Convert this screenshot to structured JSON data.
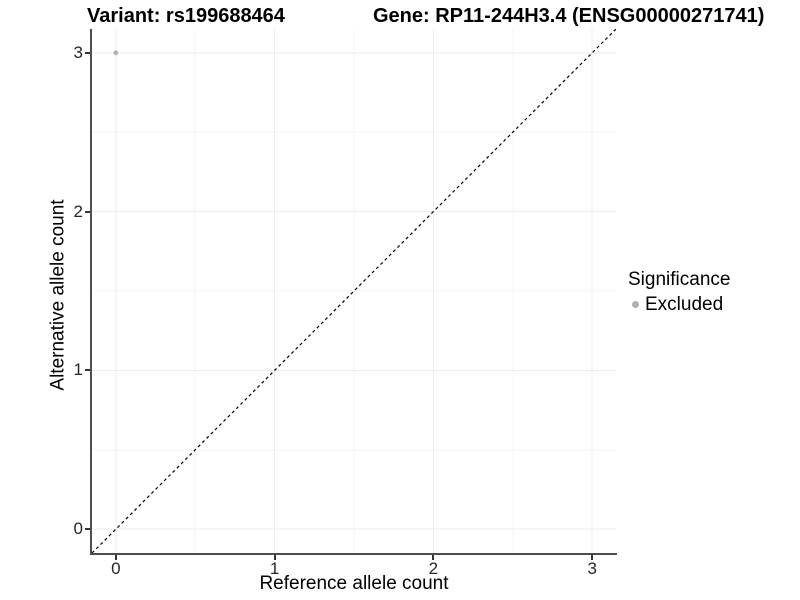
{
  "chart_data": {
    "type": "scatter",
    "title_left": "Variant: rs199688464",
    "title_right": "Gene: RP11-244H3.4 (ENSG00000271741)",
    "xlabel": "Reference allele count",
    "ylabel": "Alternative allele count",
    "xlim": [
      -0.15,
      3.15
    ],
    "ylim": [
      -0.15,
      3.15
    ],
    "x_ticks": [
      0,
      1,
      2,
      3
    ],
    "y_ticks": [
      0,
      1,
      2,
      3
    ],
    "x_minor_gridlines": [
      0.5,
      1.5,
      2.5
    ],
    "y_minor_gridlines": [
      0.5,
      1.5,
      2.5
    ],
    "grid": "major+minor",
    "legend_position": "right",
    "series": [
      {
        "name": "Excluded",
        "marker": "circle",
        "color": "#b0b0b0",
        "points": [
          {
            "x": 0,
            "y": 3
          }
        ]
      }
    ],
    "reference_line": {
      "style": "dashed",
      "color": "#000000",
      "from": [
        -0.15,
        -0.15
      ],
      "to": [
        3.15,
        3.15
      ]
    },
    "legend": {
      "title": "Significance",
      "entries": [
        {
          "label": "Excluded",
          "color": "#b0b0b0",
          "marker": "circle"
        }
      ]
    }
  },
  "colors": {
    "background": "#ffffff",
    "grid_major": "#ececec",
    "grid_minor": "#f4f4f4",
    "axis_line": "#4d4d4d",
    "tick_mark": "#333333",
    "tick_label": "#262626",
    "text": "#000000"
  }
}
